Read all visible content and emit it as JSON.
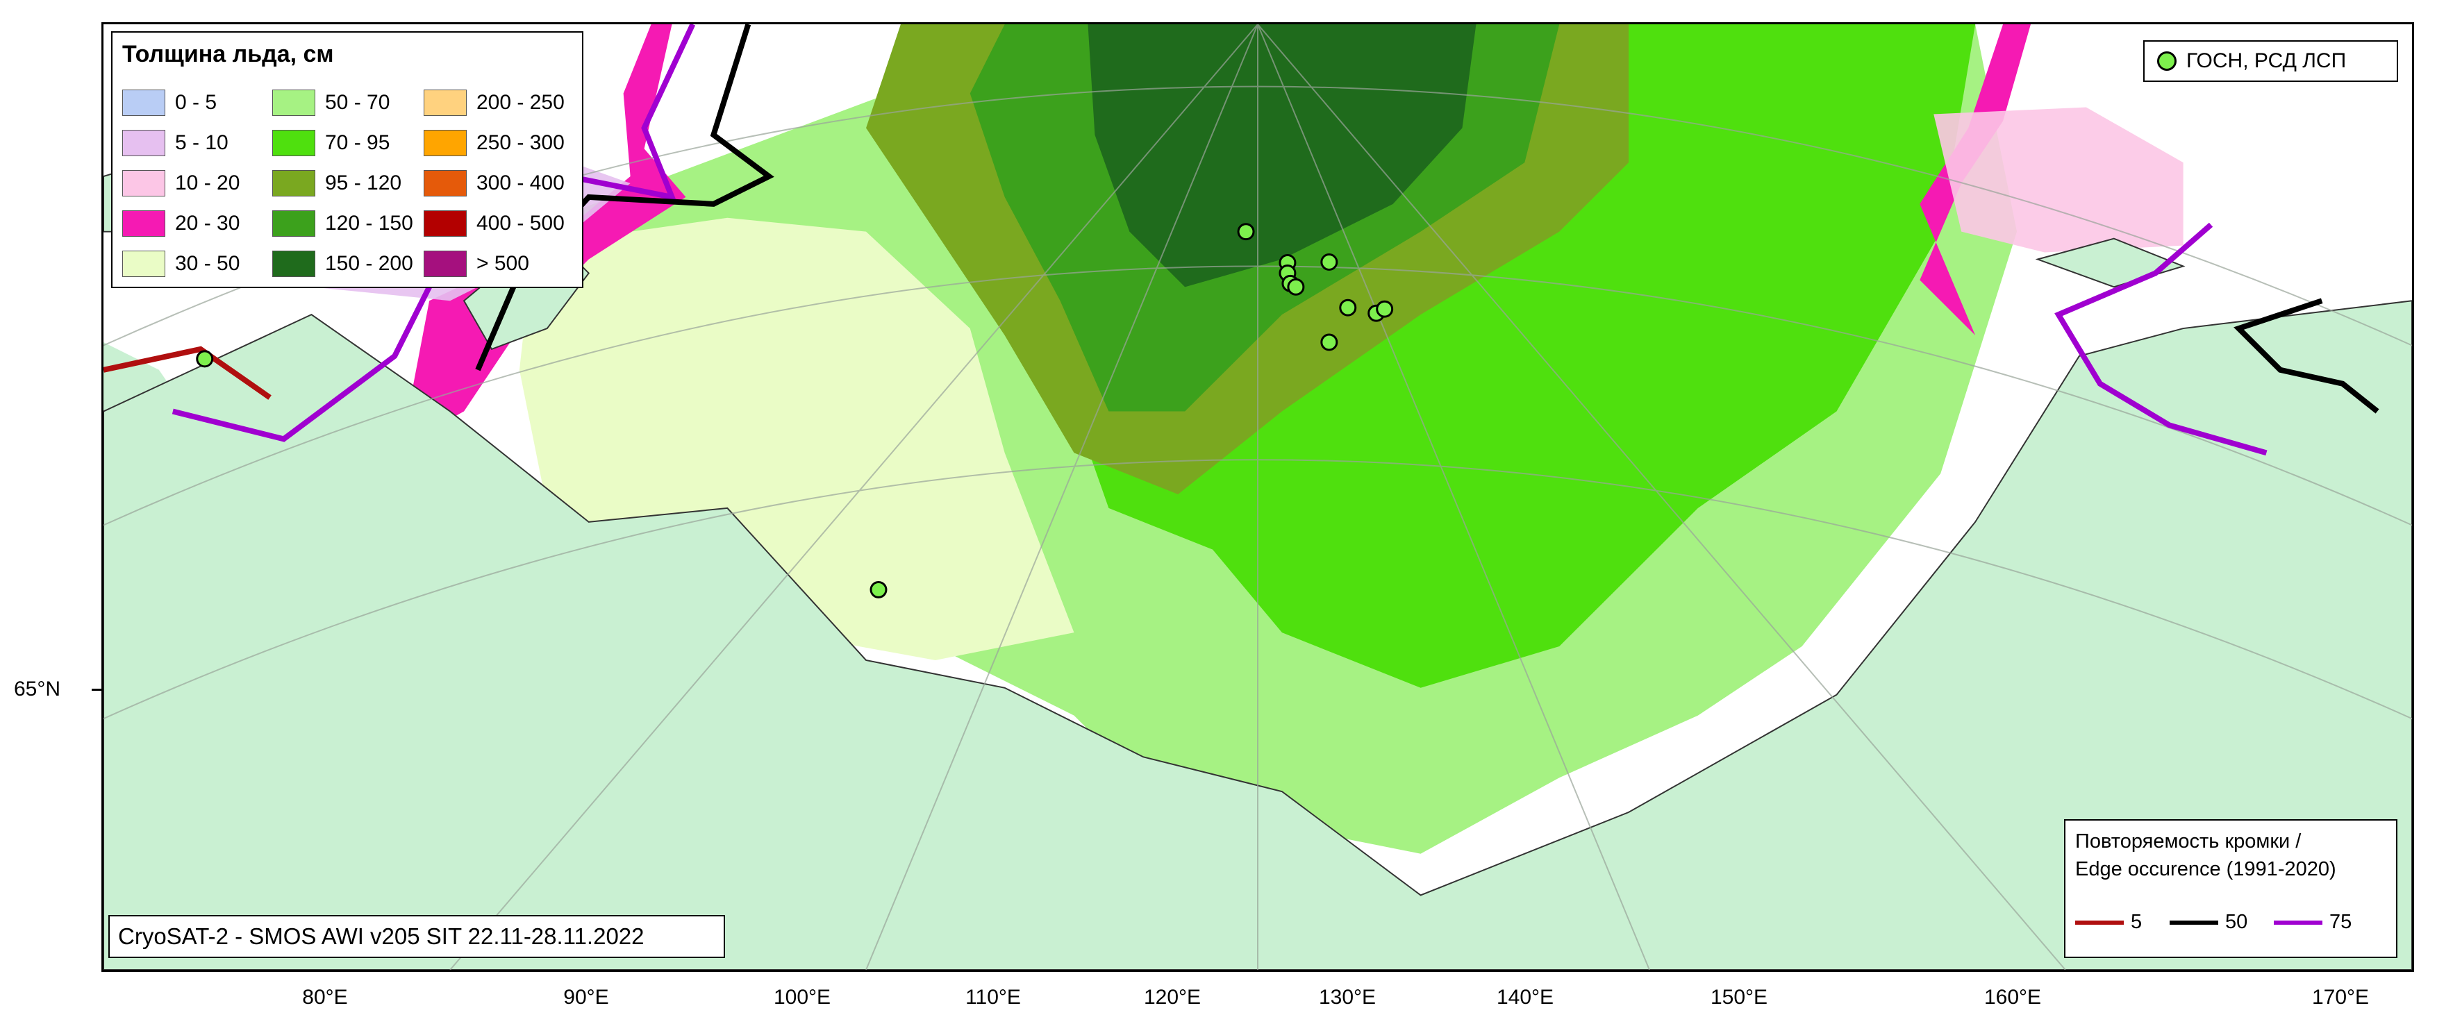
{
  "legend": {
    "title": "Толщина льда, см",
    "items": [
      {
        "label": "0 - 5",
        "color": "#b9cdf5"
      },
      {
        "label": "5 - 10",
        "color": "#e6c0f0"
      },
      {
        "label": "10 - 20",
        "color": "#fcc6e6"
      },
      {
        "label": "20 - 30",
        "color": "#f51ab3"
      },
      {
        "label": "30 - 50",
        "color": "#eafcc6"
      },
      {
        "label": "50 - 70",
        "color": "#a6f283"
      },
      {
        "label": "70 - 95",
        "color": "#4fe00e"
      },
      {
        "label": "95 - 120",
        "color": "#7aa820"
      },
      {
        "label": "120 - 150",
        "color": "#3ca11c"
      },
      {
        "label": "150 - 200",
        "color": "#1f6b1c"
      },
      {
        "label": "200 - 250",
        "color": "#ffd27f"
      },
      {
        "label": "250 - 300",
        "color": "#ffa500"
      },
      {
        "label": "300 - 400",
        "color": "#e55a0a"
      },
      {
        "label": "400 - 500",
        "color": "#b30000"
      },
      {
        "label": "> 500",
        "color": "#a5107e"
      }
    ]
  },
  "gosn_legend": {
    "label": "ГОСН, РСД ЛСП",
    "marker_color": "#7df04d"
  },
  "edge_legend": {
    "title_line1": "Повторяемость кромки /",
    "title_line2": "Edge occurence (1991-2020)",
    "items": [
      {
        "label": "5",
        "color": "#b00f0f"
      },
      {
        "label": "50",
        "color": "#000000"
      },
      {
        "label": "75",
        "color": "#a000d0"
      }
    ]
  },
  "source": "CryoSAT-2 - SMOS AWI v205 SIT 22.11-28.11.2022",
  "axes": {
    "x_ticks": [
      "80°E",
      "90°E",
      "100°E",
      "110°E",
      "120°E",
      "130°E",
      "140°E",
      "150°E",
      "160°E",
      "170°E"
    ],
    "y_ticks": [
      "65°N"
    ]
  },
  "colors": {
    "land": "#c9f0d2",
    "water": "#ffffff"
  }
}
